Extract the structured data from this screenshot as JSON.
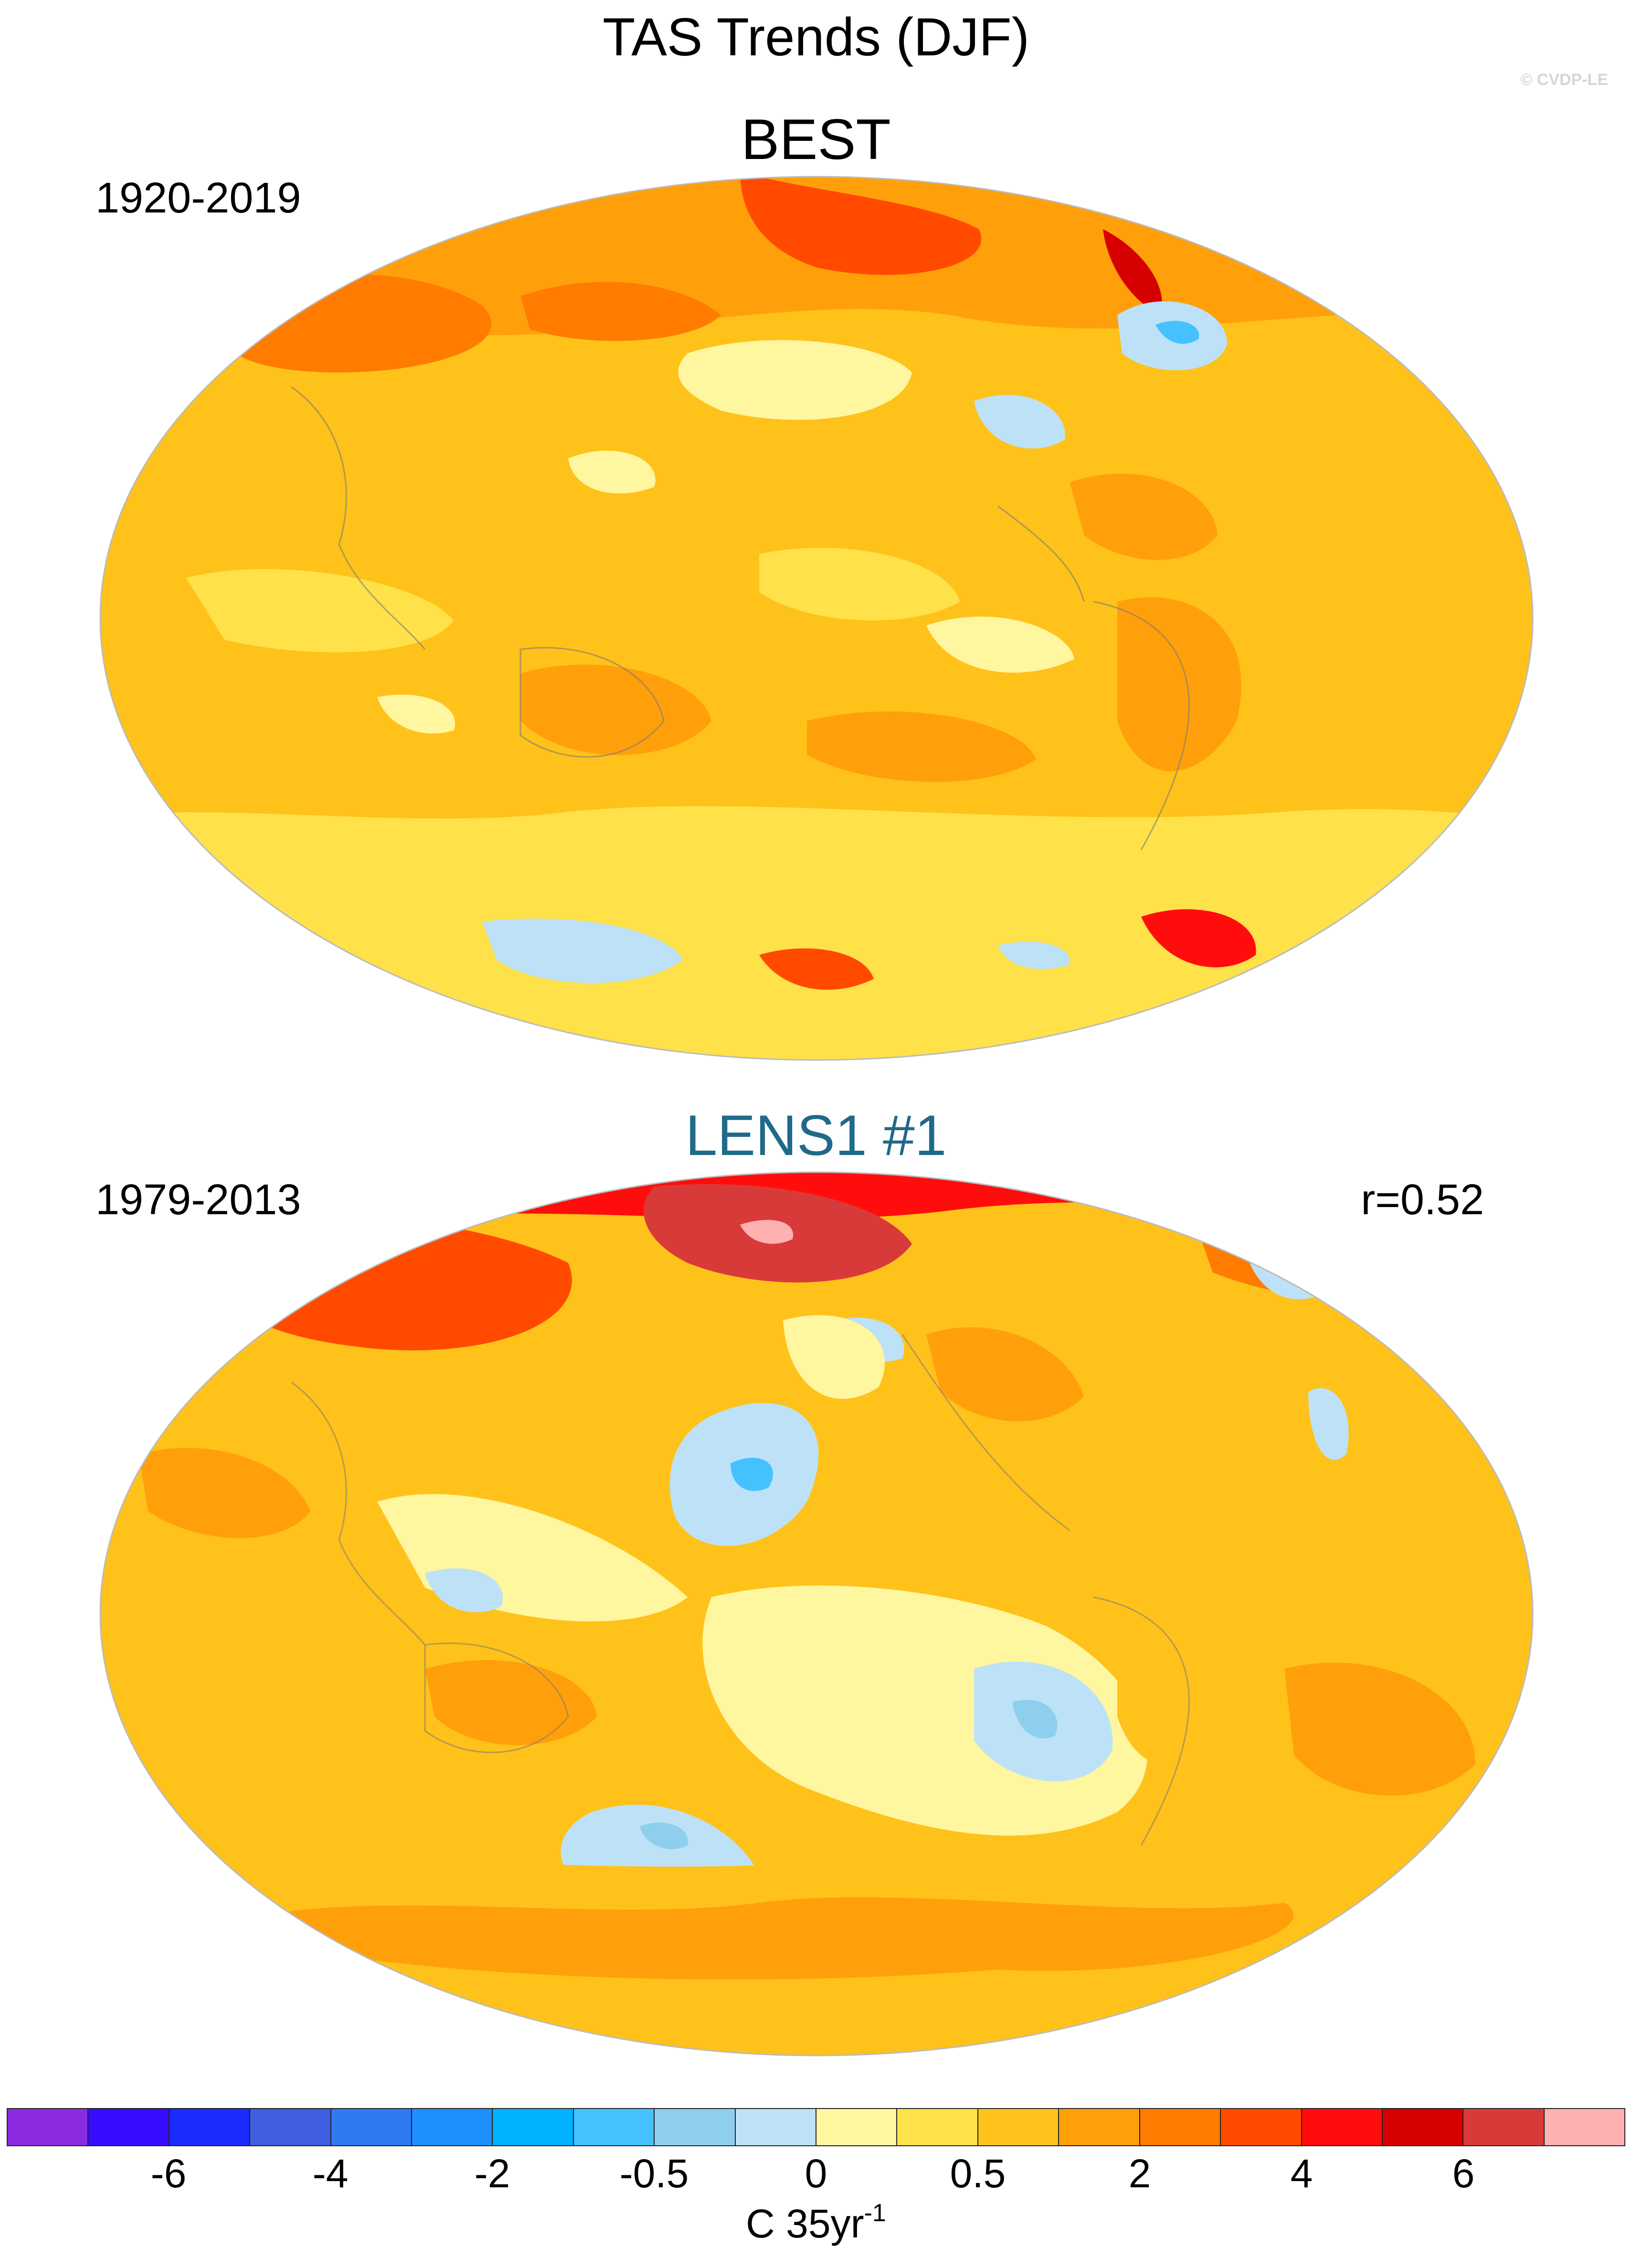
{
  "figure": {
    "title": "TAS Trends (DJF)",
    "copyright": "© CVDP-LE"
  },
  "panels": [
    {
      "title": "BEST",
      "period": "1920-2019",
      "correlation": ""
    },
    {
      "title": "LENS1 #1",
      "period": "1979-2013",
      "correlation": "r=0.52"
    }
  ],
  "colorbar": {
    "colors": [
      "#8a2be2",
      "#3a0cff",
      "#1a2bff",
      "#3f5ee0",
      "#2f7af0",
      "#1e90ff",
      "#00b2ff",
      "#45c1ff",
      "#8fcfee",
      "#bde2f7",
      "#fff6a0",
      "#ffe14a",
      "#ffc21a",
      "#ffa00a",
      "#ff7c00",
      "#ff4a00",
      "#ff0d0d",
      "#d60000",
      "#d83a3a",
      "#ffb0b0"
    ],
    "tick_labels": [
      "-6",
      "-4",
      "-2",
      "-0.5",
      "0",
      "0.5",
      "2",
      "4",
      "6"
    ],
    "units_main": "C 35yr",
    "units_sup": "-1"
  }
}
